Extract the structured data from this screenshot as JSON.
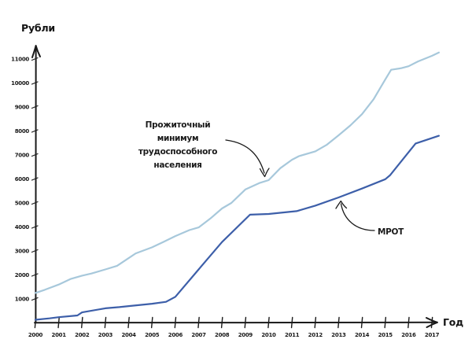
{
  "page": {
    "background": "#ffffff",
    "axis_color": "#1a1a1a"
  },
  "chart_data": {
    "type": "line",
    "title": "",
    "ylabel": "Рубли",
    "xlabel": "Год",
    "x_ticks": [
      2000,
      2001,
      2002,
      2003,
      2004,
      2005,
      2006,
      2007,
      2008,
      2009,
      2010,
      2011,
      2012,
      2013,
      2014,
      2015,
      2016,
      2017
    ],
    "y_ticks": [
      1000,
      2000,
      3000,
      4000,
      5000,
      6000,
      7000,
      8000,
      9000,
      10000,
      11000
    ],
    "xlim": [
      2000,
      2017.5
    ],
    "ylim": [
      0,
      11600
    ],
    "grid": false,
    "legend_position": "arrow-annotations",
    "series": [
      {
        "id": "pm",
        "name": "Прожиточный минимум трудоспособного населения",
        "color": "#a7c8db",
        "points": [
          [
            2000,
            1250
          ],
          [
            2000.4,
            1380
          ],
          [
            2001,
            1600
          ],
          [
            2001.5,
            1830
          ],
          [
            2002,
            1970
          ],
          [
            2002.4,
            2060
          ],
          [
            2003,
            2230
          ],
          [
            2003.5,
            2380
          ],
          [
            2004,
            2700
          ],
          [
            2004.3,
            2900
          ],
          [
            2005,
            3150
          ],
          [
            2005.5,
            3380
          ],
          [
            2006,
            3620
          ],
          [
            2006.6,
            3870
          ],
          [
            2007,
            3980
          ],
          [
            2007.5,
            4350
          ],
          [
            2008,
            4770
          ],
          [
            2008.4,
            5000
          ],
          [
            2009,
            5560
          ],
          [
            2009.6,
            5830
          ],
          [
            2010,
            5950
          ],
          [
            2010.5,
            6450
          ],
          [
            2011,
            6800
          ],
          [
            2011.3,
            6950
          ],
          [
            2012,
            7150
          ],
          [
            2012.5,
            7430
          ],
          [
            2013,
            7820
          ],
          [
            2013.5,
            8230
          ],
          [
            2014,
            8700
          ],
          [
            2014.5,
            9320
          ],
          [
            2015,
            10150
          ],
          [
            2015.25,
            10550
          ],
          [
            2015.7,
            10620
          ],
          [
            2016,
            10700
          ],
          [
            2016.4,
            10900
          ],
          [
            2017,
            11130
          ],
          [
            2017.3,
            11270
          ]
        ]
      },
      {
        "id": "mrot",
        "name": "МРОТ",
        "color": "#3d5fa9",
        "points": [
          [
            2000,
            130
          ],
          [
            2000.6,
            190
          ],
          [
            2001,
            240
          ],
          [
            2001.8,
            310
          ],
          [
            2002,
            440
          ],
          [
            2003,
            610
          ],
          [
            2003.6,
            660
          ],
          [
            2004,
            700
          ],
          [
            2005,
            800
          ],
          [
            2005.6,
            880
          ],
          [
            2006,
            1090
          ],
          [
            2007,
            2230
          ],
          [
            2008,
            3370
          ],
          [
            2009.2,
            4510
          ],
          [
            2010,
            4540
          ],
          [
            2011.2,
            4660
          ],
          [
            2012,
            4890
          ],
          [
            2013,
            5230
          ],
          [
            2014,
            5600
          ],
          [
            2015,
            5990
          ],
          [
            2015.2,
            6150
          ],
          [
            2016.3,
            7480
          ],
          [
            2017.3,
            7800
          ]
        ]
      }
    ],
    "annotations": [
      {
        "id": "pm",
        "lines": [
          "Прожиточный",
          "минимум",
          "трудоспособного",
          "населения"
        ]
      },
      {
        "id": "mrot",
        "lines": [
          "МРОТ"
        ]
      }
    ]
  }
}
